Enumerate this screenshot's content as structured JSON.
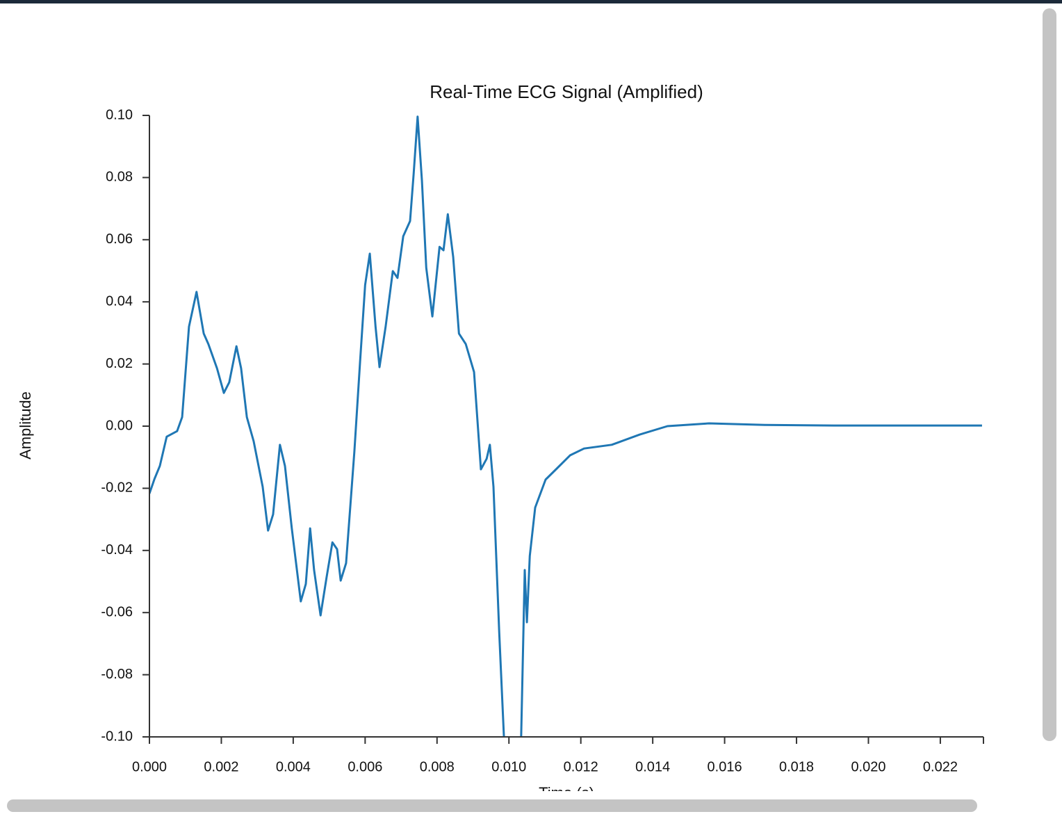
{
  "chart_data": {
    "type": "line",
    "title": "Real-Time ECG Signal (Amplified)",
    "x_label": "Time (s)",
    "y_label": "Amplitude",
    "color": "#1f77b4",
    "x": [
      0,
      0.00014,
      0.00029,
      0.00048,
      0.00077,
      0.00091,
      0.0011,
      0.00131,
      0.00151,
      0.00164,
      0.00188,
      0.00207,
      0.00222,
      0.00242,
      0.00255,
      0.00271,
      0.0029,
      0.00315,
      0.0033,
      0.00344,
      0.00363,
      0.00377,
      0.00396,
      0.00421,
      0.00435,
      0.00447,
      0.00458,
      0.00476,
      0.00493,
      0.00509,
      0.00522,
      0.00532,
      0.00547,
      0.0057,
      0.00586,
      0.006,
      0.00613,
      0.00629,
      0.0064,
      0.00657,
      0.00677,
      0.0069,
      0.00706,
      0.00725,
      0.00735,
      0.00746,
      0.00758,
      0.0077,
      0.00787,
      0.00807,
      0.00818,
      0.0083,
      0.00845,
      0.00861,
      0.0088,
      0.00903,
      0.00922,
      0.00938,
      0.00947,
      0.00957,
      0.00973,
      0.0099,
      0.01012,
      0.01034,
      0.01044,
      0.0105,
      0.01058,
      0.01073,
      0.01102,
      0.01131,
      0.0117,
      0.01209,
      0.01286,
      0.01364,
      0.01441,
      0.01557,
      0.01711,
      0.01904,
      0.02316
    ],
    "values": [
      -0.0217,
      -0.017,
      -0.0128,
      -0.0034,
      -0.0016,
      0.0029,
      0.032,
      0.0432,
      0.0298,
      0.0264,
      0.0186,
      0.0107,
      0.0141,
      0.0257,
      0.0186,
      0.0029,
      -0.0049,
      -0.0195,
      -0.0336,
      -0.0284,
      -0.006,
      -0.0128,
      -0.0329,
      -0.0564,
      -0.0508,
      -0.0329,
      -0.0463,
      -0.0609,
      -0.0485,
      -0.0374,
      -0.0396,
      -0.0497,
      -0.0441,
      -0.0083,
      0.0208,
      0.0454,
      0.0555,
      0.032,
      0.019,
      0.032,
      0.0499,
      0.0477,
      0.0611,
      0.066,
      0.0812,
      0.0996,
      0.079,
      0.051,
      0.0353,
      0.0577,
      0.0566,
      0.0682,
      0.0544,
      0.0298,
      0.0264,
      0.0174,
      -0.0139,
      -0.0105,
      -0.006,
      -0.0195,
      -0.0664,
      -0.11,
      -0.12,
      -0.1,
      -0.0463,
      -0.0631,
      -0.0418,
      -0.0262,
      -0.0172,
      -0.0139,
      -0.0094,
      -0.0072,
      -0.006,
      -0.0027,
      0,
      0.0009,
      0.0004,
      0.0002,
      0.0002
    ],
    "xlim": [
      0,
      0.0232
    ],
    "ylim": [
      -0.1,
      0.1
    ],
    "xticks": [
      {
        "value": 0,
        "label": "0.000"
      },
      {
        "value": 0.002,
        "label": "0.002"
      },
      {
        "value": 0.004,
        "label": "0.004"
      },
      {
        "value": 0.006,
        "label": "0.006"
      },
      {
        "value": 0.008,
        "label": "0.008"
      },
      {
        "value": 0.01,
        "label": "0.010"
      },
      {
        "value": 0.012,
        "label": "0.012"
      },
      {
        "value": 0.014,
        "label": "0.014"
      },
      {
        "value": 0.016,
        "label": "0.016"
      },
      {
        "value": 0.018,
        "label": "0.018"
      },
      {
        "value": 0.02,
        "label": "0.020"
      },
      {
        "value": 0.022,
        "label": "0.022"
      }
    ],
    "yticks": [
      {
        "value": 0.1,
        "label": "0.10"
      },
      {
        "value": 0.08,
        "label": "0.08"
      },
      {
        "value": 0.06,
        "label": "0.06"
      },
      {
        "value": 0.04,
        "label": "0.04"
      },
      {
        "value": 0.02,
        "label": "0.02"
      },
      {
        "value": 0,
        "label": "0.00"
      },
      {
        "value": -0.02,
        "label": "-0.02"
      },
      {
        "value": -0.04,
        "label": "-0.04"
      },
      {
        "value": -0.06,
        "label": "-0.06"
      },
      {
        "value": -0.08,
        "label": "-0.08"
      },
      {
        "value": -0.1,
        "label": "-0.10"
      }
    ]
  }
}
